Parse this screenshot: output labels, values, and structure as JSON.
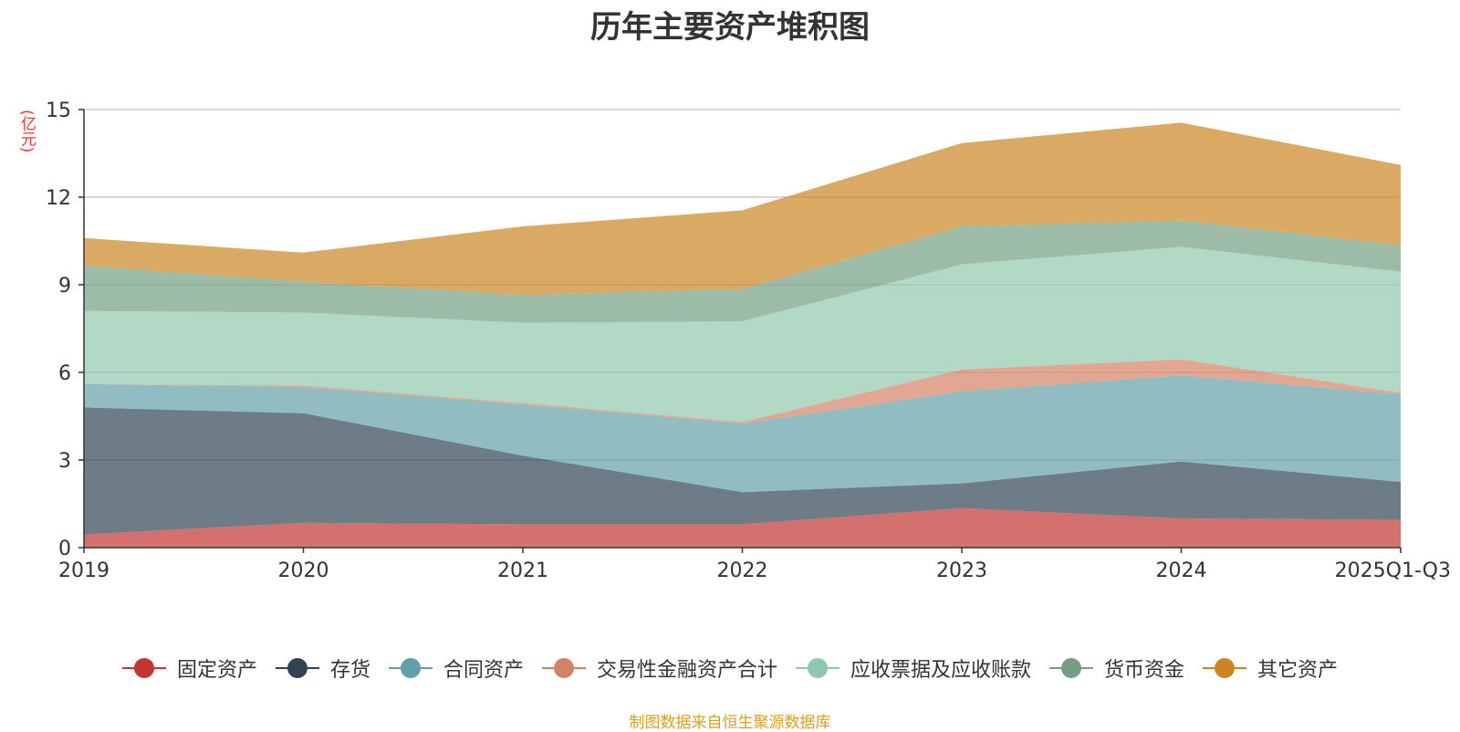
{
  "chart_data": {
    "type": "area",
    "stacked": true,
    "title": "历年主要资产堆积图",
    "ylabel": "(亿元)",
    "xlabel": "",
    "categories": [
      "2019",
      "2020",
      "2021",
      "2022",
      "2023",
      "2024",
      "2025Q1-Q3"
    ],
    "ylim": [
      0,
      15
    ],
    "yticks": [
      0,
      3,
      6,
      9,
      12,
      15
    ],
    "grid": true,
    "legend_position": "bottom",
    "series": [
      {
        "name": "固定资产",
        "color": "#c23531",
        "values": [
          0.45,
          0.85,
          0.8,
          0.8,
          1.35,
          1.0,
          0.95
        ]
      },
      {
        "name": "存货",
        "color": "#2f4554",
        "values": [
          4.35,
          3.75,
          2.35,
          1.1,
          0.85,
          1.95,
          1.3
        ]
      },
      {
        "name": "合同资产",
        "color": "#61a0a8",
        "values": [
          0.8,
          0.9,
          1.75,
          2.35,
          3.15,
          2.95,
          3.0
        ]
      },
      {
        "name": "交易性金融资产合计",
        "color": "#d48265",
        "values": [
          0.0,
          0.05,
          0.05,
          0.05,
          0.75,
          0.55,
          0.05
        ]
      },
      {
        "name": "应收票据及应收账款",
        "color": "#91c7ae",
        "values": [
          2.5,
          2.5,
          2.75,
          3.45,
          3.6,
          3.85,
          4.15
        ]
      },
      {
        "name": "货币资金",
        "color": "#749f83",
        "values": [
          1.55,
          1.05,
          0.95,
          1.1,
          1.3,
          0.9,
          0.9
        ]
      },
      {
        "name": "其它资产",
        "color": "#ca8622",
        "values": [
          0.95,
          1.0,
          2.35,
          2.7,
          2.85,
          3.35,
          2.75
        ]
      }
    ]
  },
  "source_note": "制图数据来自恒生聚源数据库"
}
